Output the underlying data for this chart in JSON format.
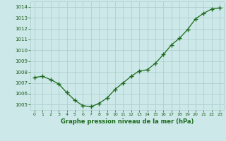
{
  "x": [
    0,
    1,
    2,
    3,
    4,
    5,
    6,
    7,
    8,
    9,
    10,
    11,
    12,
    13,
    14,
    15,
    16,
    17,
    18,
    19,
    20,
    21,
    22,
    23
  ],
  "y": [
    1007.5,
    1007.6,
    1007.3,
    1006.9,
    1006.1,
    1005.4,
    1004.9,
    1004.8,
    1005.1,
    1005.6,
    1006.4,
    1007.0,
    1007.6,
    1008.1,
    1008.2,
    1008.8,
    1009.6,
    1010.5,
    1011.1,
    1011.9,
    1012.9,
    1013.4,
    1013.8,
    1013.9
  ],
  "bg_color": "#cce8e8",
  "line_color": "#1a6b1a",
  "marker_color": "#1a6b1a",
  "grid_color": "#aacccc",
  "xlabel": "Graphe pression niveau de la mer (hPa)",
  "xlabel_color": "#1a6b1a",
  "tick_label_color": "#1a5a1a",
  "ylim": [
    1004.5,
    1014.5
  ],
  "yticks": [
    1005,
    1006,
    1007,
    1008,
    1009,
    1010,
    1011,
    1012,
    1013,
    1014
  ],
  "xlim": [
    -0.5,
    23.5
  ],
  "xticks": [
    0,
    1,
    2,
    3,
    4,
    5,
    6,
    7,
    8,
    9,
    10,
    11,
    12,
    13,
    14,
    15,
    16,
    17,
    18,
    19,
    20,
    21,
    22,
    23
  ]
}
